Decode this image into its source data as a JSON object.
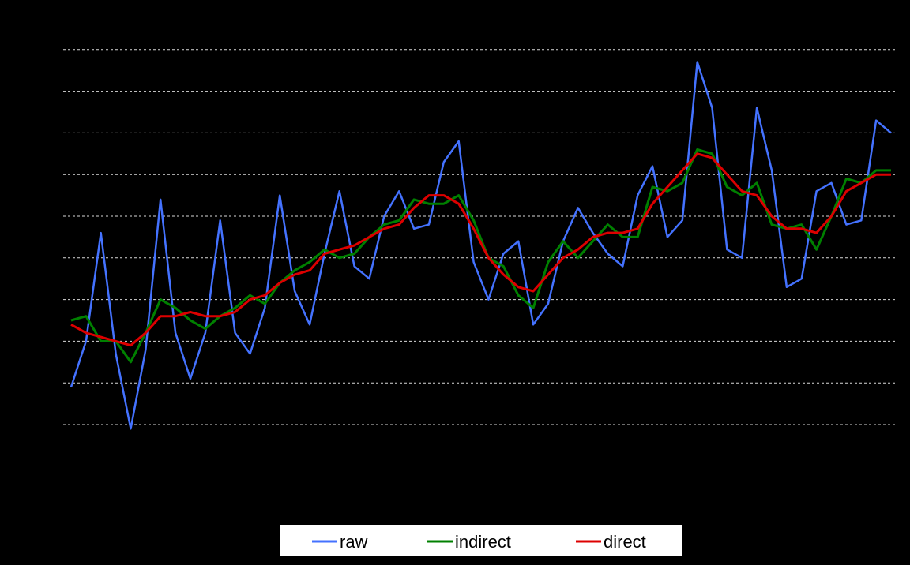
{
  "chart_data": {
    "type": "line",
    "title": "",
    "xlabel": "",
    "ylabel": "",
    "x": [
      0,
      1,
      2,
      3,
      4,
      5,
      6,
      7,
      8,
      9,
      10,
      11,
      12,
      13,
      14,
      15,
      16,
      17,
      18,
      19,
      20,
      21,
      22,
      23,
      24,
      25,
      26,
      27,
      28,
      29,
      30,
      31,
      32,
      33,
      34,
      35,
      36,
      37,
      38,
      39,
      40,
      41,
      42,
      43,
      44,
      45,
      46,
      47,
      48,
      49,
      50,
      51,
      52,
      53,
      54,
      55
    ],
    "xlim": [
      0,
      55
    ],
    "ylim": [
      0,
      10
    ],
    "grid": true,
    "legend_position": "bottom-center",
    "series": [
      {
        "name": "raw",
        "color": "#4472ff",
        "values": [
          0.9,
          2.0,
          4.6,
          1.7,
          -0.1,
          1.8,
          5.4,
          2.2,
          1.1,
          2.2,
          4.9,
          2.2,
          1.7,
          2.8,
          5.5,
          3.2,
          2.4,
          4.1,
          5.6,
          3.8,
          3.5,
          5.0,
          5.6,
          4.7,
          4.8,
          6.3,
          6.8,
          3.9,
          3.0,
          4.1,
          4.4,
          2.4,
          2.9,
          4.4,
          5.2,
          4.6,
          4.1,
          3.8,
          5.5,
          6.2,
          4.5,
          4.9,
          8.7,
          7.6,
          4.2,
          4.0,
          7.6,
          6.1,
          3.3,
          3.5,
          5.6,
          5.8,
          4.8,
          4.9,
          7.3,
          7.0
        ]
      },
      {
        "name": "indirect",
        "color": "#008000",
        "values": [
          2.5,
          2.6,
          2.0,
          2.0,
          1.5,
          2.2,
          3.0,
          2.8,
          2.5,
          2.3,
          2.6,
          2.8,
          3.1,
          2.9,
          3.4,
          3.7,
          3.9,
          4.2,
          4.0,
          4.1,
          4.5,
          4.8,
          4.9,
          5.4,
          5.3,
          5.3,
          5.5,
          4.9,
          4.0,
          3.8,
          3.1,
          2.8,
          3.9,
          4.4,
          4.0,
          4.4,
          4.8,
          4.5,
          4.5,
          5.7,
          5.6,
          5.8,
          6.6,
          6.5,
          5.7,
          5.5,
          5.8,
          4.8,
          4.7,
          4.8,
          4.2,
          5.0,
          5.9,
          5.8,
          6.1,
          6.1
        ]
      },
      {
        "name": "direct",
        "color": "#dd0000",
        "values": [
          2.4,
          2.2,
          2.1,
          2.0,
          1.9,
          2.2,
          2.6,
          2.6,
          2.7,
          2.6,
          2.6,
          2.7,
          3.0,
          3.1,
          3.4,
          3.6,
          3.7,
          4.1,
          4.2,
          4.3,
          4.5,
          4.7,
          4.8,
          5.2,
          5.5,
          5.5,
          5.3,
          4.7,
          4.0,
          3.6,
          3.3,
          3.2,
          3.6,
          4.0,
          4.2,
          4.5,
          4.6,
          4.6,
          4.7,
          5.3,
          5.7,
          6.1,
          6.5,
          6.4,
          6.0,
          5.6,
          5.5,
          5.0,
          4.7,
          4.7,
          4.6,
          5.0,
          5.6,
          5.8,
          6.0,
          6.0
        ]
      }
    ]
  }
}
